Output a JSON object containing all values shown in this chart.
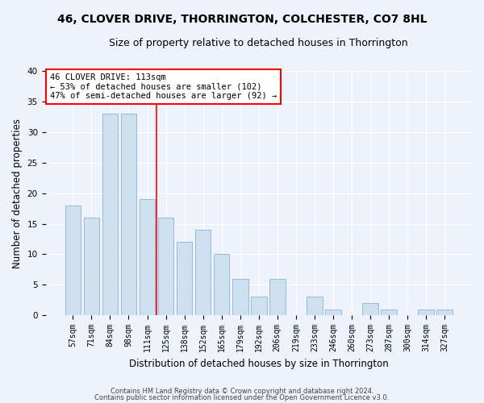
{
  "title1": "46, CLOVER DRIVE, THORRINGTON, COLCHESTER, CO7 8HL",
  "title2": "Size of property relative to detached houses in Thorrington",
  "xlabel": "Distribution of detached houses by size in Thorrington",
  "ylabel": "Number of detached properties",
  "categories": [
    "57sqm",
    "71sqm",
    "84sqm",
    "98sqm",
    "111sqm",
    "125sqm",
    "138sqm",
    "152sqm",
    "165sqm",
    "179sqm",
    "192sqm",
    "206sqm",
    "219sqm",
    "233sqm",
    "246sqm",
    "260sqm",
    "273sqm",
    "287sqm",
    "300sqm",
    "314sqm",
    "327sqm"
  ],
  "values": [
    18,
    16,
    33,
    33,
    19,
    16,
    12,
    14,
    10,
    6,
    3,
    6,
    0,
    3,
    1,
    0,
    2,
    1,
    0,
    1,
    1
  ],
  "bar_color": "#cce0f0",
  "bar_edge_color": "#8ab4d4",
  "red_line_after_index": 4,
  "annotation_text": "46 CLOVER DRIVE: 113sqm\n← 53% of detached houses are smaller (102)\n47% of semi-detached houses are larger (92) →",
  "annotation_box_color": "white",
  "annotation_box_edgecolor": "red",
  "ylim": [
    0,
    40
  ],
  "yticks": [
    0,
    5,
    10,
    15,
    20,
    25,
    30,
    35,
    40
  ],
  "footnote1": "Contains HM Land Registry data © Crown copyright and database right 2024.",
  "footnote2": "Contains public sector information licensed under the Open Government Licence v3.0.",
  "bg_color": "#eef2fa",
  "plot_bg_color": "#eef2fa",
  "title1_fontsize": 10,
  "title2_fontsize": 9,
  "tick_fontsize": 7,
  "ylabel_fontsize": 8.5,
  "xlabel_fontsize": 8.5,
  "annotation_fontsize": 7.5
}
